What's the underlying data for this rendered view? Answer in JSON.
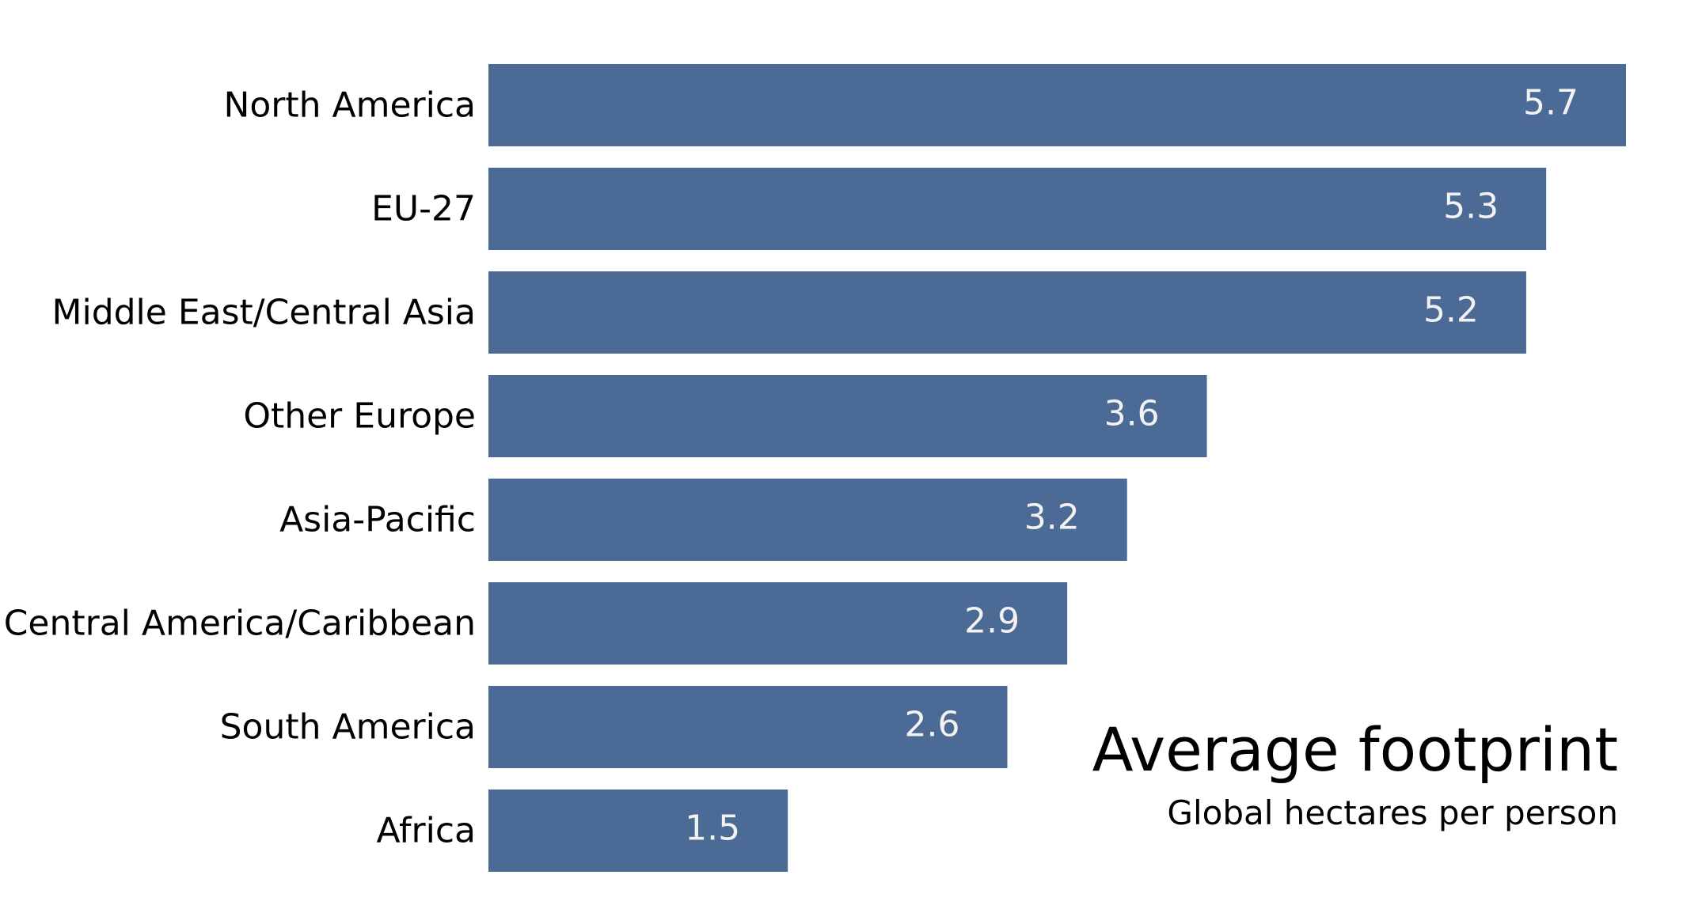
{
  "chart_data": {
    "type": "bar",
    "orientation": "horizontal",
    "title": "Average footprint",
    "subtitle": "Global hectares per person",
    "categories": [
      "North America",
      "EU-27",
      "Middle East/Central Asia",
      "Other Europe",
      "Asia-Pacific",
      "Central America/Caribbean",
      "South America",
      "Africa"
    ],
    "values": [
      5.7,
      5.3,
      5.2,
      3.6,
      3.2,
      2.9,
      2.6,
      1.5
    ],
    "value_labels": [
      "5.7",
      "5.3",
      "5.2",
      "3.6",
      "3.2",
      "2.9",
      "2.6",
      "1.5"
    ],
    "xlim": [
      0,
      5.7
    ],
    "grid": false,
    "title_placement": "bottom-right",
    "bar_color": "#4b6b96",
    "value_label_color": "#f2f2f2"
  }
}
